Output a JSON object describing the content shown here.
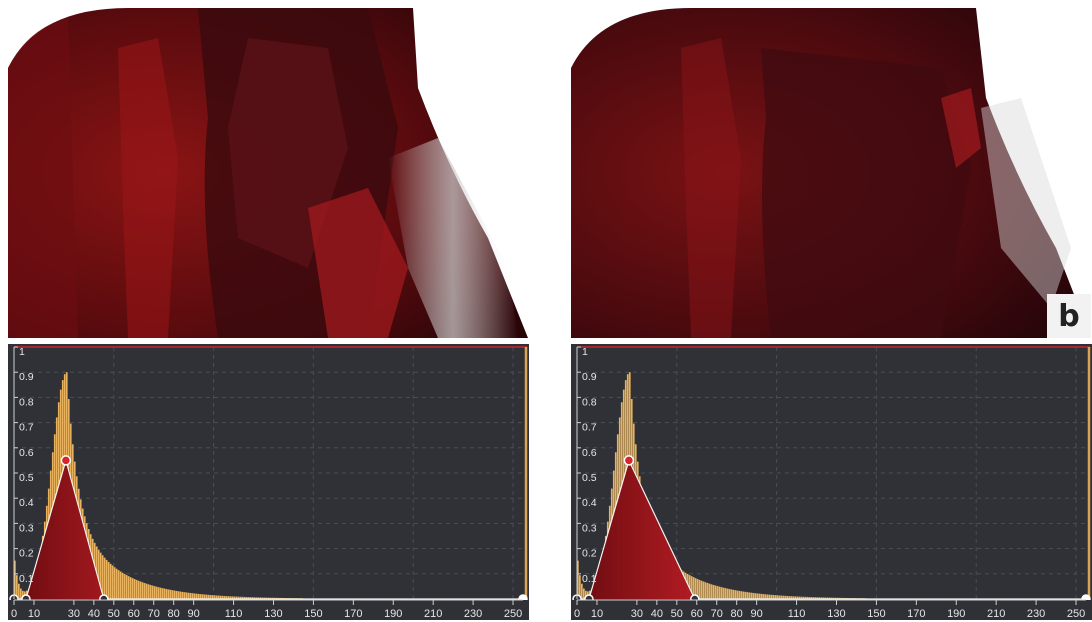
{
  "panels": [
    {
      "id": "a",
      "badge": "",
      "tf_editor": {
        "y_ticks": [
          "1",
          "0.9",
          "0.8",
          "0.7",
          "0.6",
          "0.5",
          "0.4",
          "0.3",
          "0.2",
          "0.1"
        ],
        "x_ticks": [
          "0",
          "10",
          "30",
          "40",
          "50",
          "60",
          "70",
          "80",
          "90",
          "110",
          "130",
          "150",
          "170",
          "190",
          "210",
          "230",
          "250"
        ],
        "control_points": [
          {
            "x": 0,
            "opacity": 0
          },
          {
            "x": 6,
            "opacity": 0
          },
          {
            "x": 26,
            "opacity": 0.55
          },
          {
            "x": 45,
            "opacity": 0
          },
          {
            "x": 255,
            "opacity": 0
          }
        ]
      }
    },
    {
      "id": "b",
      "badge": "b",
      "tf_editor": {
        "y_ticks": [
          "1",
          "0.9",
          "0.8",
          "0.7",
          "0.6",
          "0.5",
          "0.4",
          "0.3",
          "0.2",
          "0.1"
        ],
        "x_ticks": [
          "0",
          "10",
          "30",
          "40",
          "50",
          "60",
          "70",
          "80",
          "90",
          "110",
          "130",
          "150",
          "170",
          "190",
          "210",
          "230",
          "250"
        ],
        "control_points": [
          {
            "x": 0,
            "opacity": 0
          },
          {
            "x": 6,
            "opacity": 0
          },
          {
            "x": 26,
            "opacity": 0.55
          },
          {
            "x": 59,
            "opacity": 0
          },
          {
            "x": 255,
            "opacity": 0
          }
        ]
      }
    }
  ],
  "histogram": {
    "peak_x": 26,
    "peak_value": 0.9,
    "color": "#e8b25e"
  },
  "colors": {
    "editor_bg": "#2f3137",
    "grid": "#4a4d55",
    "axis_text": "#e6e6e6",
    "tf_red": "#d8242c",
    "tf_dark": "#2a1014",
    "border_gold": "#d9a554",
    "top_line": "#c8242c"
  }
}
